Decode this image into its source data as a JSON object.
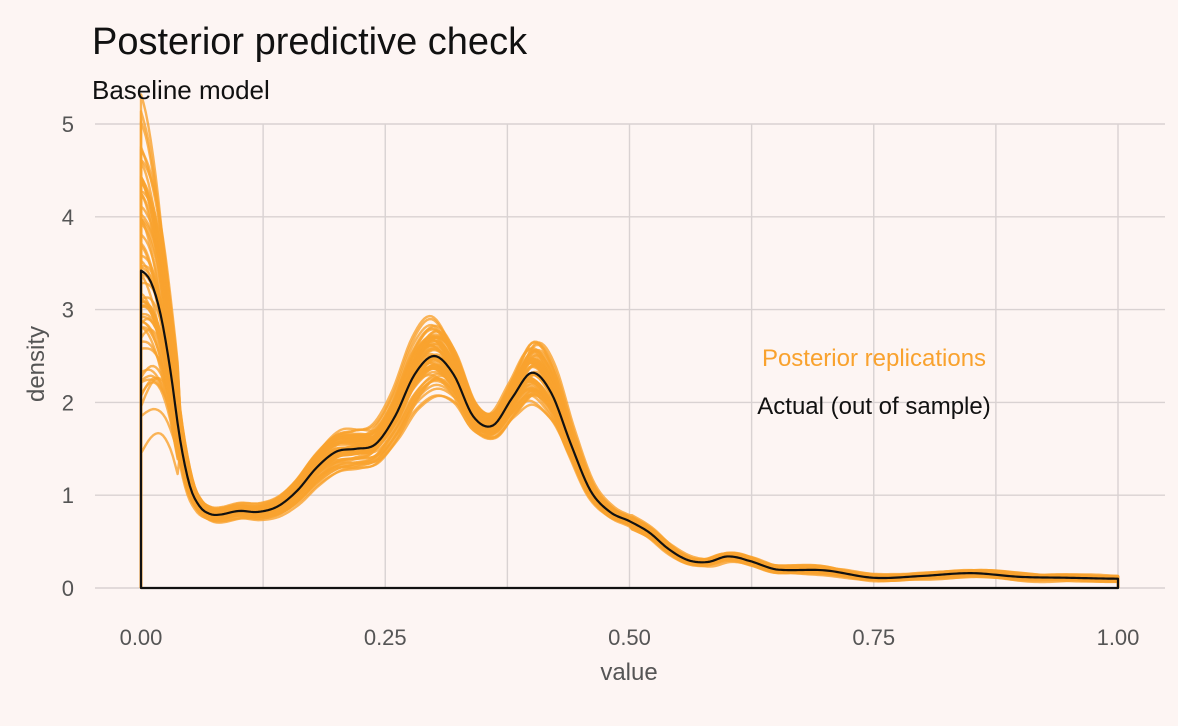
{
  "chart_data": {
    "type": "line",
    "title": "Posterior predictive check",
    "subtitle": "Baseline model",
    "xlabel": "value",
    "ylabel": "density",
    "xlim": [
      0,
      1
    ],
    "ylim": [
      0,
      5
    ],
    "x_ticks": [
      0,
      0.25,
      0.5,
      0.75,
      1
    ],
    "x_tick_labels": [
      "0.00",
      "0.25",
      "0.50",
      "0.75",
      "1.00"
    ],
    "y_ticks": [
      0,
      1,
      2,
      3,
      4,
      5
    ],
    "y_tick_labels": [
      "0",
      "1",
      "2",
      "3",
      "4",
      "5"
    ],
    "grid": true,
    "colors": {
      "background": "#fdf5f3",
      "replications": "#f9a22e",
      "actual": "#111111",
      "grid": "#d9d2d2"
    },
    "annotations": [
      {
        "text": "Posterior replications",
        "color": "#f9a22e"
      },
      {
        "text": "Actual (out of sample)",
        "color": "#111111"
      }
    ],
    "series": [
      {
        "name": "Actual (out of sample)",
        "x": [
          0,
          0.01,
          0.02,
          0.03,
          0.04,
          0.05,
          0.06,
          0.07,
          0.08,
          0.1,
          0.12,
          0.14,
          0.16,
          0.18,
          0.2,
          0.22,
          0.24,
          0.26,
          0.28,
          0.3,
          0.32,
          0.34,
          0.36,
          0.38,
          0.4,
          0.42,
          0.44,
          0.46,
          0.48,
          0.5,
          0.52,
          0.54,
          0.56,
          0.58,
          0.6,
          0.62,
          0.65,
          0.7,
          0.75,
          0.8,
          0.85,
          0.9,
          0.95,
          1.0
        ],
        "y": [
          3.42,
          3.3,
          2.95,
          2.35,
          1.6,
          1.1,
          0.88,
          0.8,
          0.79,
          0.83,
          0.82,
          0.88,
          1.05,
          1.3,
          1.47,
          1.5,
          1.55,
          1.85,
          2.3,
          2.5,
          2.3,
          1.85,
          1.75,
          2.05,
          2.32,
          2.1,
          1.55,
          1.05,
          0.82,
          0.72,
          0.6,
          0.42,
          0.3,
          0.28,
          0.34,
          0.3,
          0.2,
          0.19,
          0.11,
          0.13,
          0.16,
          0.12,
          0.11,
          0.1
        ]
      }
    ]
  }
}
